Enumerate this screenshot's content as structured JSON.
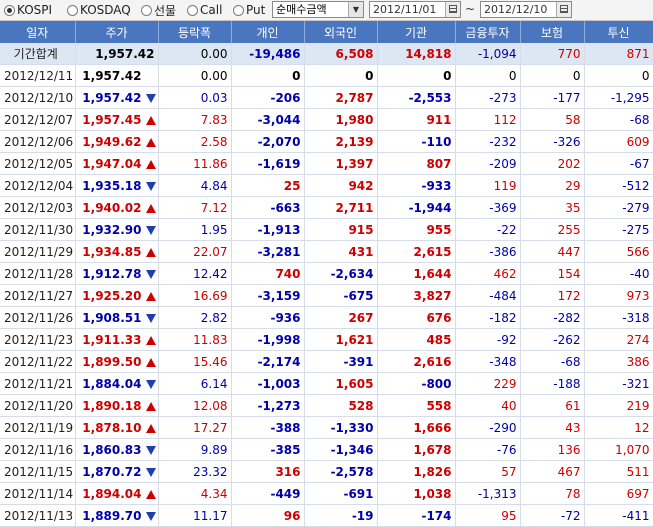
{
  "toolbar": {
    "radios": [
      {
        "label": "KOSPI",
        "selected": true
      },
      {
        "label": "KOSDAQ",
        "selected": false
      },
      {
        "label": "선물",
        "selected": false
      },
      {
        "label": "Call",
        "selected": false
      },
      {
        "label": "Put",
        "selected": false
      }
    ],
    "metric_select": "순매수금액",
    "start_date": "2012/11/01",
    "date_sep": "~",
    "end_date": "2012/12/10"
  },
  "columns": [
    "일자",
    "주가",
    "등락폭",
    "개인",
    "외국인",
    "기관",
    "금융투자",
    "보험",
    "투신"
  ],
  "summary": {
    "label": "기간합계",
    "price": "1,957.42",
    "change": "0.00",
    "indiv": "-19,486",
    "foreign": "6,508",
    "inst": "14,818",
    "fin": "-1,094",
    "ins": "770",
    "trust": "871"
  },
  "rows": [
    {
      "date": "2012/12/11",
      "price": "1,957.42",
      "dir": "flat",
      "change": "0.00",
      "indiv": "0",
      "foreign": "0",
      "inst": "0",
      "fin": "0",
      "ins": "0",
      "trust": "0"
    },
    {
      "date": "2012/12/10",
      "price": "1,957.42",
      "dir": "down",
      "change": "0.03",
      "indiv": "-206",
      "foreign": "2,787",
      "inst": "-2,553",
      "fin": "-273",
      "ins": "-177",
      "trust": "-1,295"
    },
    {
      "date": "2012/12/07",
      "price": "1,957.45",
      "dir": "up",
      "change": "7.83",
      "indiv": "-3,044",
      "foreign": "1,980",
      "inst": "911",
      "fin": "112",
      "ins": "58",
      "trust": "-68"
    },
    {
      "date": "2012/12/06",
      "price": "1,949.62",
      "dir": "up",
      "change": "2.58",
      "indiv": "-2,070",
      "foreign": "2,139",
      "inst": "-110",
      "fin": "-232",
      "ins": "-326",
      "trust": "609"
    },
    {
      "date": "2012/12/05",
      "price": "1,947.04",
      "dir": "up",
      "change": "11.86",
      "indiv": "-1,619",
      "foreign": "1,397",
      "inst": "807",
      "fin": "-209",
      "ins": "202",
      "trust": "-67"
    },
    {
      "date": "2012/12/04",
      "price": "1,935.18",
      "dir": "down",
      "change": "4.84",
      "indiv": "25",
      "foreign": "942",
      "inst": "-933",
      "fin": "119",
      "ins": "29",
      "trust": "-512"
    },
    {
      "date": "2012/12/03",
      "price": "1,940.02",
      "dir": "up",
      "change": "7.12",
      "indiv": "-663",
      "foreign": "2,711",
      "inst": "-1,944",
      "fin": "-369",
      "ins": "35",
      "trust": "-279"
    },
    {
      "date": "2012/11/30",
      "price": "1,932.90",
      "dir": "down",
      "change": "1.95",
      "indiv": "-1,913",
      "foreign": "915",
      "inst": "955",
      "fin": "-22",
      "ins": "255",
      "trust": "-275"
    },
    {
      "date": "2012/11/29",
      "price": "1,934.85",
      "dir": "up",
      "change": "22.07",
      "indiv": "-3,281",
      "foreign": "431",
      "inst": "2,615",
      "fin": "-386",
      "ins": "447",
      "trust": "566"
    },
    {
      "date": "2012/11/28",
      "price": "1,912.78",
      "dir": "down",
      "change": "12.42",
      "indiv": "740",
      "foreign": "-2,634",
      "inst": "1,644",
      "fin": "462",
      "ins": "154",
      "trust": "-40"
    },
    {
      "date": "2012/11/27",
      "price": "1,925.20",
      "dir": "up",
      "change": "16.69",
      "indiv": "-3,159",
      "foreign": "-675",
      "inst": "3,827",
      "fin": "-484",
      "ins": "172",
      "trust": "973"
    },
    {
      "date": "2012/11/26",
      "price": "1,908.51",
      "dir": "down",
      "change": "2.82",
      "indiv": "-936",
      "foreign": "267",
      "inst": "676",
      "fin": "-182",
      "ins": "-282",
      "trust": "-318"
    },
    {
      "date": "2012/11/23",
      "price": "1,911.33",
      "dir": "up",
      "change": "11.83",
      "indiv": "-1,998",
      "foreign": "1,621",
      "inst": "485",
      "fin": "-92",
      "ins": "-262",
      "trust": "274"
    },
    {
      "date": "2012/11/22",
      "price": "1,899.50",
      "dir": "up",
      "change": "15.46",
      "indiv": "-2,174",
      "foreign": "-391",
      "inst": "2,616",
      "fin": "-348",
      "ins": "-68",
      "trust": "386"
    },
    {
      "date": "2012/11/21",
      "price": "1,884.04",
      "dir": "down",
      "change": "6.14",
      "indiv": "-1,003",
      "foreign": "1,605",
      "inst": "-800",
      "fin": "229",
      "ins": "-188",
      "trust": "-321"
    },
    {
      "date": "2012/11/20",
      "price": "1,890.18",
      "dir": "up",
      "change": "12.08",
      "indiv": "-1,273",
      "foreign": "528",
      "inst": "558",
      "fin": "40",
      "ins": "61",
      "trust": "219"
    },
    {
      "date": "2012/11/19",
      "price": "1,878.10",
      "dir": "up",
      "change": "17.27",
      "indiv": "-388",
      "foreign": "-1,330",
      "inst": "1,666",
      "fin": "-290",
      "ins": "43",
      "trust": "12"
    },
    {
      "date": "2012/11/16",
      "price": "1,860.83",
      "dir": "down",
      "change": "9.89",
      "indiv": "-385",
      "foreign": "-1,346",
      "inst": "1,678",
      "fin": "-76",
      "ins": "136",
      "trust": "1,070"
    },
    {
      "date": "2012/11/15",
      "price": "1,870.72",
      "dir": "down",
      "change": "23.32",
      "indiv": "316",
      "foreign": "-2,578",
      "inst": "1,826",
      "fin": "57",
      "ins": "467",
      "trust": "511"
    },
    {
      "date": "2012/11/14",
      "price": "1,894.04",
      "dir": "up",
      "change": "4.34",
      "indiv": "-449",
      "foreign": "-691",
      "inst": "1,038",
      "fin": "-1,313",
      "ins": "78",
      "trust": "697"
    },
    {
      "date": "2012/11/13",
      "price": "1,889.70",
      "dir": "down",
      "change": "11.17",
      "indiv": "96",
      "foreign": "-19",
      "inst": "-174",
      "fin": "95",
      "ins": "-72",
      "trust": "-411"
    }
  ]
}
